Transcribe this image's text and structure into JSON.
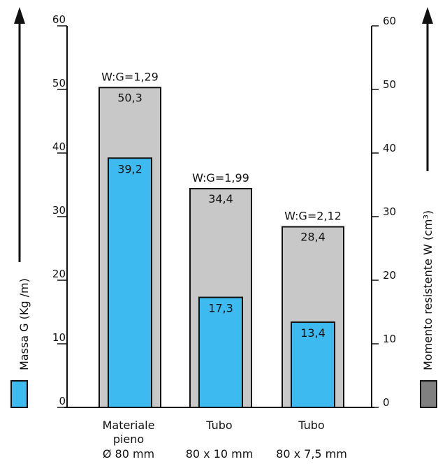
{
  "chart_data": {
    "type": "bar",
    "categories": [
      {
        "lines": [
          "Materiale",
          "pieno",
          "Ø 80 mm"
        ]
      },
      {
        "lines": [
          "Tubo",
          "",
          "80 x 10 mm"
        ]
      },
      {
        "lines": [
          "Tubo",
          "",
          "80 x 7,5 mm"
        ]
      }
    ],
    "series": [
      {
        "key": "W",
        "values": [
          50.3,
          34.4,
          28.4
        ],
        "labels": [
          "50,3",
          "34,4",
          "28,4"
        ],
        "color": "#c8c8c8"
      },
      {
        "key": "G",
        "values": [
          39.2,
          17.3,
          13.4
        ],
        "labels": [
          "39,2",
          "17,3",
          "13,4"
        ],
        "color": "#3dbbf0"
      }
    ],
    "ratio_labels": [
      "W:G=1,29",
      "W:G=1,99",
      "W:G=2,12"
    ],
    "ylim": [
      0,
      60
    ],
    "yticks": [
      0,
      10,
      20,
      30,
      40,
      50,
      60
    ],
    "ylabel_left": "Massa G (Kg /m)",
    "ylabel_right": "Momento resistente W (cm³)",
    "legend_colors": {
      "left": "#3dbbf0",
      "right": "#808080"
    }
  }
}
